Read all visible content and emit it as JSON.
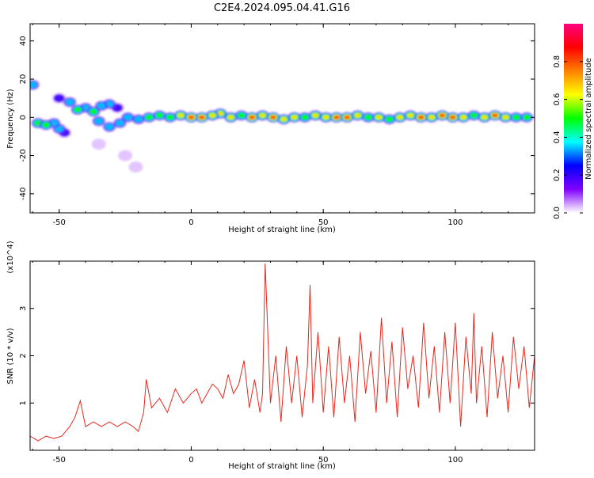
{
  "title": "C2E4.2024.095.04.41.G16",
  "colors": {
    "axis": "#000000",
    "snr_line": "#e8281e",
    "cbar": [
      "#ffffff",
      "#8000ff",
      "#0000ff",
      "#00ffff",
      "#00ff00",
      "#ffff00",
      "#ff8000",
      "#ff0000",
      "#ff0080"
    ]
  },
  "chart_data": [
    {
      "type": "heatmap",
      "title": "",
      "xlabel": "Height of straight line (km)",
      "ylabel": "Frequency (Hz)",
      "xlim": [
        -61,
        130
      ],
      "ylim": [
        -50,
        49
      ],
      "xticks": [
        -50,
        0,
        50,
        100
      ],
      "yticks": [
        40,
        20,
        0,
        -20,
        -40
      ],
      "colorbar": {
        "label": "Normalized spectral amplitude",
        "range": [
          0,
          1
        ],
        "ticks": [
          0.0,
          0.2,
          0.4,
          0.6,
          0.8
        ]
      },
      "blobs": [
        {
          "x": -60,
          "y": 17,
          "v": 0.4
        },
        {
          "x": -58,
          "y": -3,
          "v": 0.45
        },
        {
          "x": -55,
          "y": -4,
          "v": 0.5
        },
        {
          "x": -52,
          "y": -3,
          "v": 0.4
        },
        {
          "x": -50,
          "y": -6,
          "v": 0.3
        },
        {
          "x": -48,
          "y": -8,
          "v": 0.25
        },
        {
          "x": -50,
          "y": 10,
          "v": 0.25
        },
        {
          "x": -46,
          "y": 8,
          "v": 0.35
        },
        {
          "x": -43,
          "y": 4,
          "v": 0.45
        },
        {
          "x": -40,
          "y": 5,
          "v": 0.4
        },
        {
          "x": -37,
          "y": 3,
          "v": 0.45
        },
        {
          "x": -34,
          "y": 6,
          "v": 0.35
        },
        {
          "x": -31,
          "y": 7,
          "v": 0.3
        },
        {
          "x": -28,
          "y": 5,
          "v": 0.25
        },
        {
          "x": -35,
          "y": -2,
          "v": 0.35
        },
        {
          "x": -31,
          "y": -5,
          "v": 0.3
        },
        {
          "x": -27,
          "y": -3,
          "v": 0.35
        },
        {
          "x": -24,
          "y": 0,
          "v": 0.4
        },
        {
          "x": -20,
          "y": -1,
          "v": 0.4
        },
        {
          "x": -16,
          "y": 0,
          "v": 0.45
        },
        {
          "x": -12,
          "y": 1,
          "v": 0.5
        },
        {
          "x": -8,
          "y": 0,
          "v": 0.55
        },
        {
          "x": -4,
          "y": 1,
          "v": 0.6
        },
        {
          "x": 0,
          "y": 0,
          "v": 0.8
        },
        {
          "x": 4,
          "y": 0,
          "v": 0.75
        },
        {
          "x": 8,
          "y": 1,
          "v": 0.7
        },
        {
          "x": 11,
          "y": 2,
          "v": 0.65
        },
        {
          "x": 15,
          "y": 0,
          "v": 0.6
        },
        {
          "x": 19,
          "y": 1,
          "v": 0.55
        },
        {
          "x": 23,
          "y": 0,
          "v": 0.75
        },
        {
          "x": 27,
          "y": 1,
          "v": 0.6
        },
        {
          "x": 31,
          "y": 0,
          "v": 0.8
        },
        {
          "x": 35,
          "y": -1,
          "v": 0.65
        },
        {
          "x": 39,
          "y": 0,
          "v": 0.6
        },
        {
          "x": 43,
          "y": 0,
          "v": 0.55
        },
        {
          "x": 47,
          "y": 1,
          "v": 0.6
        },
        {
          "x": 51,
          "y": 0,
          "v": 0.7
        },
        {
          "x": 55,
          "y": 0,
          "v": 0.75
        },
        {
          "x": 59,
          "y": 0,
          "v": 0.8
        },
        {
          "x": 63,
          "y": 1,
          "v": 0.6
        },
        {
          "x": 67,
          "y": 0,
          "v": 0.55
        },
        {
          "x": 71,
          "y": 0,
          "v": 0.6
        },
        {
          "x": 75,
          "y": -1,
          "v": 0.55
        },
        {
          "x": 79,
          "y": 0,
          "v": 0.6
        },
        {
          "x": 83,
          "y": 1,
          "v": 0.65
        },
        {
          "x": 87,
          "y": 0,
          "v": 0.75
        },
        {
          "x": 91,
          "y": 0,
          "v": 0.6
        },
        {
          "x": 95,
          "y": 1,
          "v": 0.85
        },
        {
          "x": 99,
          "y": 0,
          "v": 0.75
        },
        {
          "x": 103,
          "y": 0,
          "v": 0.6
        },
        {
          "x": 107,
          "y": 1,
          "v": 0.55
        },
        {
          "x": 111,
          "y": 0,
          "v": 0.6
        },
        {
          "x": 115,
          "y": 1,
          "v": 0.8
        },
        {
          "x": 119,
          "y": 0,
          "v": 0.6
        },
        {
          "x": 123,
          "y": 0,
          "v": 0.55
        },
        {
          "x": 127,
          "y": 0,
          "v": 0.5
        },
        {
          "x": -25,
          "y": -20,
          "v": 0.1
        },
        {
          "x": -21,
          "y": -26,
          "v": 0.1
        },
        {
          "x": -35,
          "y": -14,
          "v": 0.1
        }
      ]
    },
    {
      "type": "line",
      "title": "",
      "xlabel": "Height of straight line (km)",
      "ylabel": "SNR (10 * v/v)",
      "yscale_label": "(x10^4)",
      "xlim": [
        -61,
        130
      ],
      "ylim": [
        0,
        4
      ],
      "xticks": [
        -50,
        0,
        50,
        100
      ],
      "yticks": [
        1,
        2,
        3
      ],
      "series": [
        {
          "name": "SNR",
          "x": [
            -61,
            -58,
            -55,
            -52,
            -49,
            -46,
            -44,
            -42,
            -40,
            -37,
            -34,
            -31,
            -28,
            -25,
            -22,
            -20,
            -18,
            -17,
            -15,
            -12,
            -9,
            -6,
            -3,
            0,
            2,
            4,
            6,
            8,
            10,
            12,
            14,
            16,
            18,
            20,
            22,
            24,
            26,
            27,
            28,
            30,
            32,
            34,
            36,
            38,
            40,
            42,
            44,
            45,
            46,
            48,
            50,
            52,
            54,
            56,
            58,
            60,
            62,
            64,
            66,
            68,
            70,
            72,
            74,
            76,
            78,
            80,
            82,
            84,
            86,
            88,
            90,
            92,
            94,
            96,
            98,
            100,
            102,
            104,
            106,
            107,
            108,
            110,
            112,
            114,
            116,
            118,
            120,
            122,
            124,
            126,
            128,
            130
          ],
          "values": [
            0.3,
            0.2,
            0.3,
            0.25,
            0.3,
            0.5,
            0.7,
            1.05,
            0.5,
            0.6,
            0.5,
            0.6,
            0.5,
            0.6,
            0.5,
            0.4,
            0.8,
            1.5,
            0.9,
            1.1,
            0.8,
            1.3,
            1.0,
            1.2,
            1.3,
            1.0,
            1.2,
            1.4,
            1.3,
            1.1,
            1.6,
            1.2,
            1.4,
            1.9,
            0.9,
            1.5,
            0.8,
            1.2,
            3.95,
            1.0,
            2.0,
            0.6,
            2.2,
            1.0,
            2.0,
            0.7,
            1.8,
            3.5,
            1.0,
            2.5,
            0.8,
            2.2,
            0.7,
            2.4,
            1.0,
            2.0,
            0.6,
            2.5,
            1.2,
            2.1,
            0.8,
            2.8,
            1.0,
            2.3,
            0.7,
            2.6,
            1.3,
            2.0,
            0.9,
            2.7,
            1.1,
            2.2,
            0.8,
            2.5,
            1.0,
            2.7,
            0.5,
            2.4,
            1.2,
            2.9,
            1.0,
            2.2,
            0.7,
            2.5,
            1.1,
            2.0,
            0.8,
            2.4,
            1.3,
            2.2,
            0.9,
            2.0
          ]
        }
      ]
    }
  ]
}
